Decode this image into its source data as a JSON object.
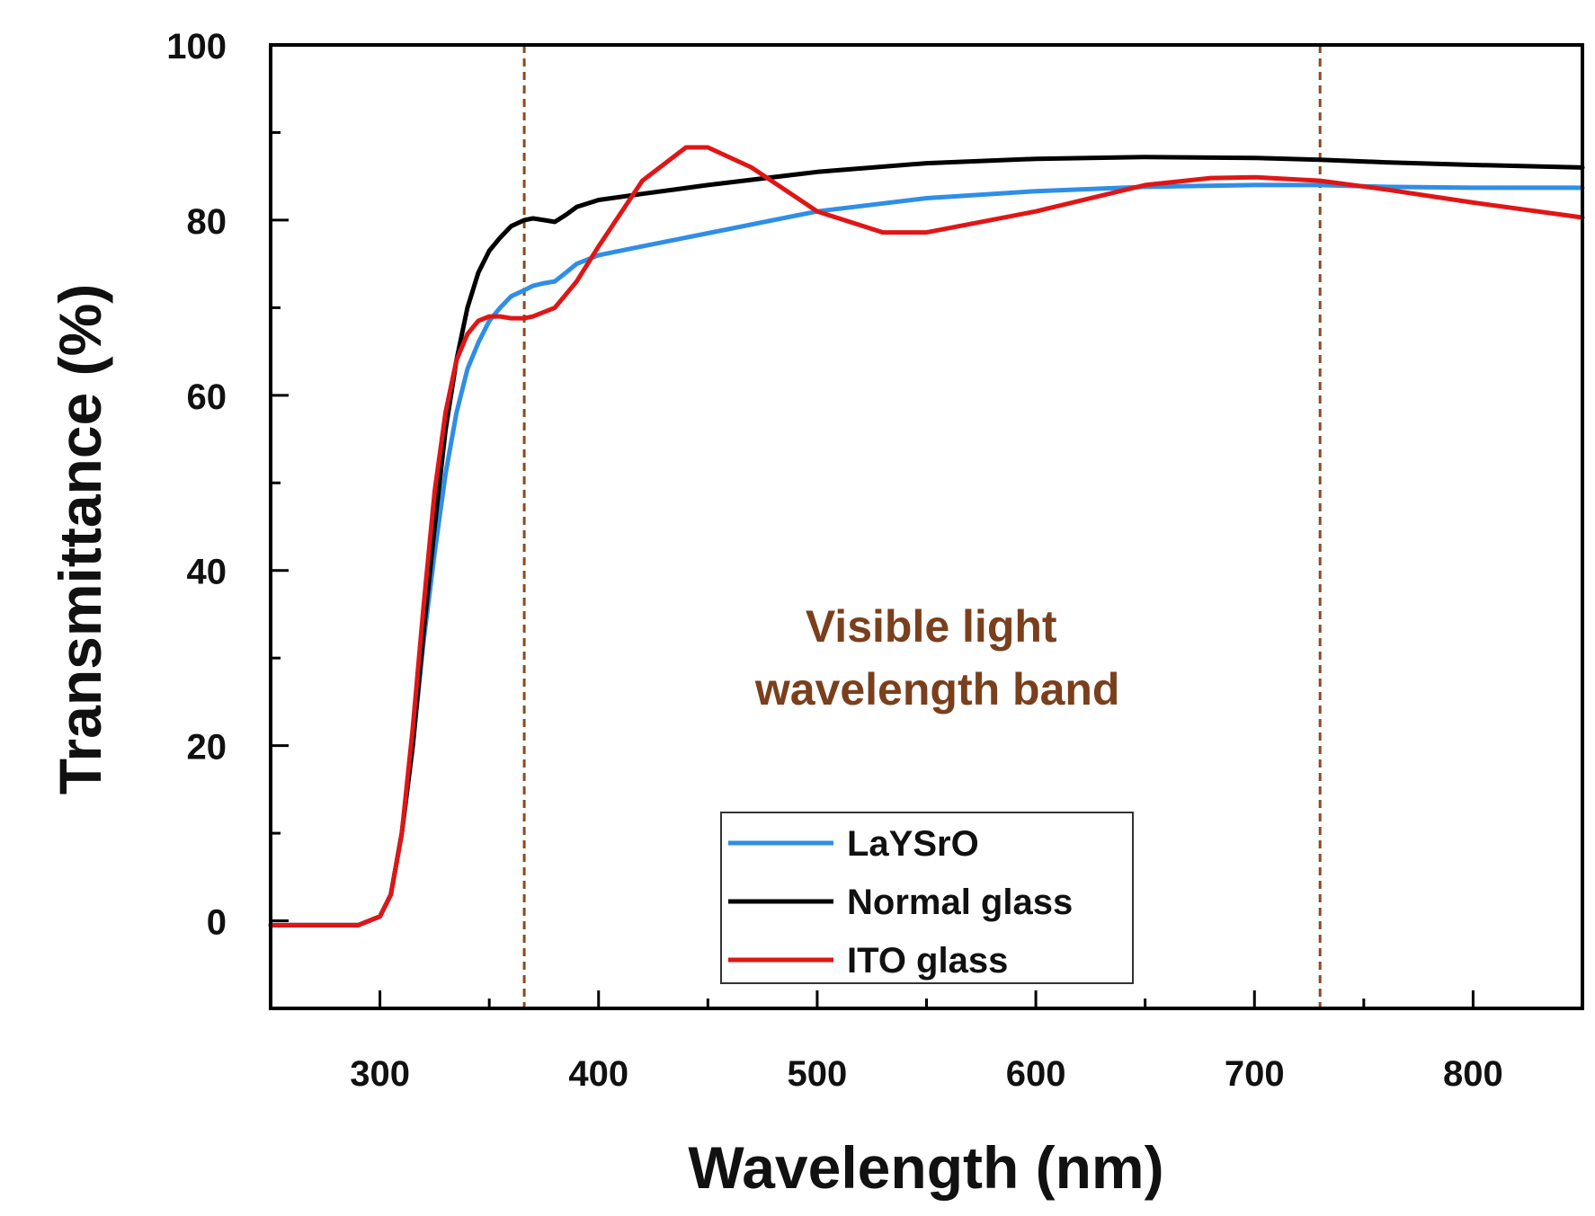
{
  "chart_data": {
    "type": "line",
    "title": "",
    "xlabel": "Wavelength (nm)",
    "ylabel": "Transmittance (%)",
    "xlim": [
      250,
      850
    ],
    "ylim": [
      -10,
      100
    ],
    "x_major_ticks": [
      300,
      400,
      500,
      600,
      700,
      800
    ],
    "x_minor_ticks": [
      350,
      450,
      550,
      650,
      750
    ],
    "y_major_ticks": [
      0,
      20,
      40,
      60,
      80,
      100
    ],
    "y_minor_ticks": [
      10,
      30,
      50,
      70,
      90
    ],
    "grid": false,
    "legend_position": "bottom-center",
    "annotation": {
      "lines": [
        "Visible light",
        "wavelength band"
      ],
      "x": 555,
      "y": 36,
      "color": "#7a3f1c"
    },
    "vertical_lines": [
      {
        "x": 366,
        "color": "#8b4a22",
        "style": "dashed"
      },
      {
        "x": 730,
        "color": "#8b4a22",
        "style": "dashed"
      }
    ],
    "series": [
      {
        "name": "LaYSrO",
        "color": "#2f8ee6",
        "x": [
          250,
          290,
          300,
          305,
          310,
          315,
          320,
          325,
          330,
          335,
          340,
          345,
          350,
          355,
          360,
          366,
          370,
          375,
          380,
          385,
          390,
          400,
          420,
          450,
          500,
          550,
          600,
          650,
          700,
          730,
          760,
          800,
          850
        ],
        "y": [
          -0.5,
          -0.5,
          0.5,
          3,
          10,
          20,
          32,
          42,
          51,
          58,
          63,
          66,
          68.5,
          70,
          71.3,
          72,
          72.5,
          72.8,
          73,
          74,
          75,
          76,
          77,
          78.5,
          81,
          82.5,
          83.3,
          83.8,
          84,
          84,
          83.8,
          83.7,
          83.7
        ]
      },
      {
        "name": "Normal glass",
        "color": "#000000",
        "x": [
          250,
          290,
          300,
          305,
          310,
          315,
          320,
          325,
          330,
          335,
          340,
          345,
          350,
          355,
          360,
          366,
          370,
          375,
          380,
          385,
          390,
          400,
          420,
          450,
          500,
          550,
          600,
          650,
          700,
          730,
          760,
          800,
          850
        ],
        "y": [
          -0.5,
          -0.5,
          0.5,
          3,
          10,
          20,
          33,
          45,
          56,
          64,
          70,
          74,
          76.5,
          78,
          79.3,
          80,
          80.2,
          80,
          79.8,
          80.6,
          81.5,
          82.3,
          83,
          84,
          85.5,
          86.5,
          87,
          87.2,
          87.1,
          86.9,
          86.6,
          86.3,
          86
        ]
      },
      {
        "name": "ITO glass",
        "color": "#e01616",
        "x": [
          250,
          290,
          300,
          305,
          310,
          315,
          320,
          325,
          330,
          335,
          340,
          345,
          350,
          355,
          360,
          366,
          370,
          380,
          390,
          400,
          420,
          440,
          450,
          470,
          500,
          530,
          550,
          600,
          650,
          680,
          700,
          730,
          760,
          800,
          850
        ],
        "y": [
          -0.5,
          -0.5,
          0.5,
          3,
          10,
          22,
          36,
          49,
          58,
          64,
          67,
          68.5,
          69,
          69,
          68.8,
          68.8,
          69,
          70,
          73,
          77,
          84.5,
          88.3,
          88.3,
          86,
          81,
          78.6,
          78.6,
          81,
          84,
          84.8,
          84.9,
          84.5,
          83.5,
          82,
          80.3
        ]
      }
    ]
  }
}
